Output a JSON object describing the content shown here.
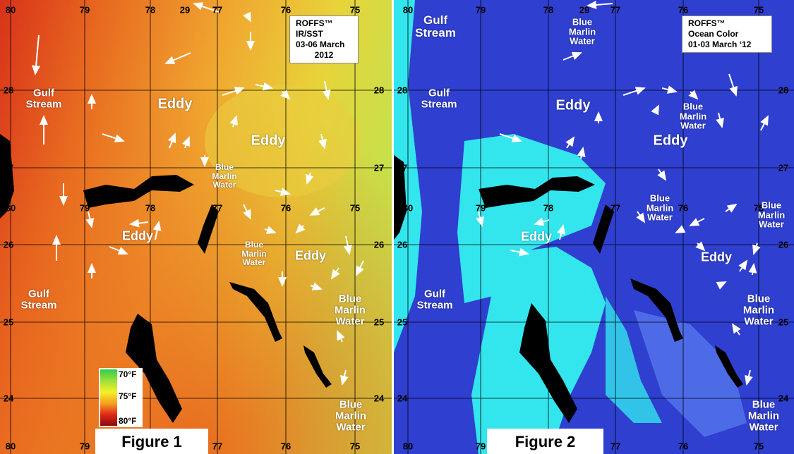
{
  "panels": [
    {
      "caption": "Figure 1",
      "title": [
        "ROFFS™",
        "IR/SST",
        "03-06 March",
        "2012"
      ],
      "legend": [
        "70°F",
        "75°F",
        "80°F"
      ],
      "lon_labels": [
        "80",
        "79",
        "78",
        "77",
        "76",
        "75"
      ],
      "lat_labels": [
        "29",
        "28",
        "27",
        "26",
        "25",
        "24"
      ],
      "annotations": [
        "Gulf Stream",
        "Eddy",
        "Eddy",
        "Blue Marlin Water",
        "Eddy",
        "Blue Marlin Water",
        "Eddy",
        "Gulf Stream",
        "Blue Marlin Water",
        "Blue Marlin Water"
      ]
    },
    {
      "caption": "Figure 2",
      "title": [
        "ROFFS™",
        "Ocean Color",
        "01-03 March ‘12"
      ],
      "lon_labels": [
        "80",
        "79",
        "78",
        "77",
        "76",
        "75"
      ],
      "lat_labels": [
        "29",
        "28",
        "27",
        "26",
        "25",
        "24"
      ],
      "annotations": [
        "Gulf Stream",
        "Blue Marlin Water",
        "Gulf Stream",
        "Eddy",
        "Blue Marlin Water",
        "Eddy",
        "Blue Marlin Water",
        "Blue Marlin Water",
        "Eddy",
        "Eddy",
        "Gulf Stream",
        "Blue Marlin Water",
        "Blue Marlin Water"
      ]
    }
  ]
}
